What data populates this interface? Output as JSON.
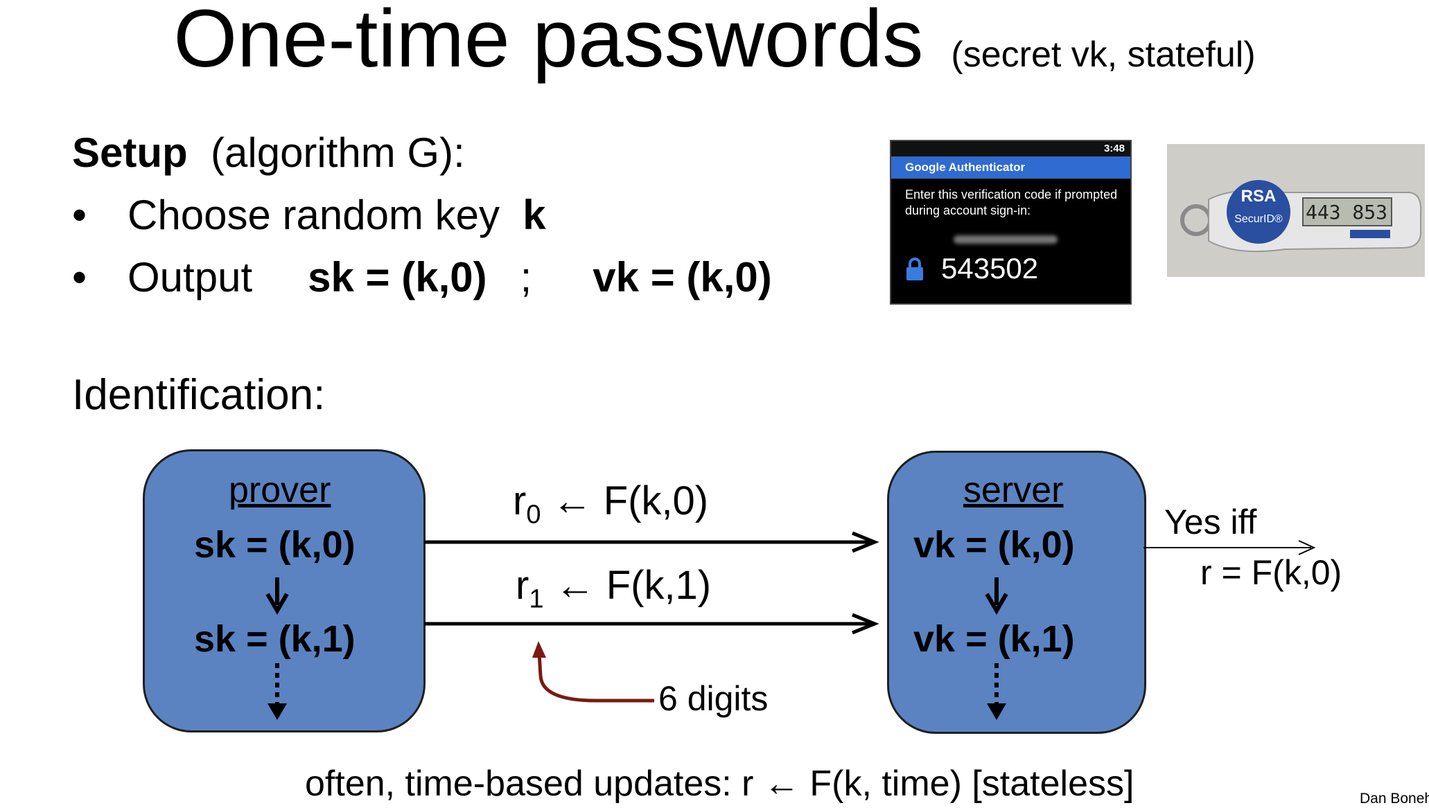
{
  "title": {
    "main": "One-time passwords",
    "sub": "(secret vk,   stateful)"
  },
  "setup": {
    "label": "Setup",
    "algo": "(algorithm G):",
    "bullets": [
      {
        "dot": "•",
        "text": "Choose random key ",
        "bold": "k"
      },
      {
        "dot": "•",
        "text": "Output",
        "sk": "sk = (k,0)",
        "sep": ";",
        "vk": "vk = (k,0)"
      }
    ]
  },
  "identification": {
    "label": "Identification:"
  },
  "prover": {
    "title": "prover",
    "state0": "sk = (k,0)",
    "state1": "sk = (k,1)"
  },
  "server": {
    "title": "server",
    "state0": "vk = (k,0)",
    "state1": "vk = (k,1)"
  },
  "messages": {
    "r0_base": "r",
    "r0_sub": "0",
    "r0_rhs": " ← F(k,0)",
    "r1_base": "r",
    "r1_sub": "1",
    "r1_rhs": " ← F(k,1)",
    "digits_note": "6 digits"
  },
  "verify": {
    "line1": "Yes iff",
    "line2": "r = F(k,0)"
  },
  "phone": {
    "clock": "3:48",
    "app_title": "Google Authenticator",
    "prompt": "Enter this verification code if prompted during account sign-in:",
    "code": "543502"
  },
  "token": {
    "brand": "RSA",
    "product": "SecurID®",
    "display": "443 853"
  },
  "footer": "often, time-based updates:    r ← F(k, time)      [stateless]",
  "author": "Dan Boneh",
  "colors": {
    "box_fill": "#5b83c1",
    "note_arrow": "#7a1a12"
  }
}
